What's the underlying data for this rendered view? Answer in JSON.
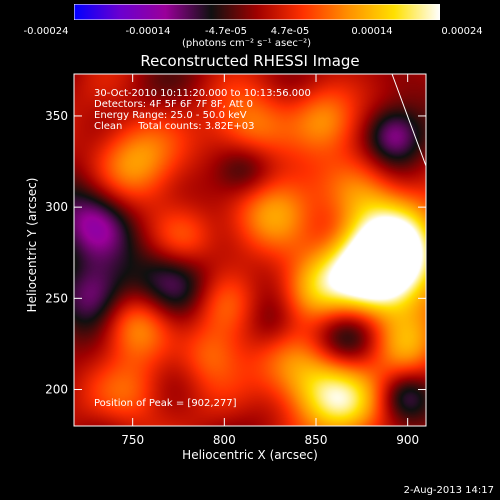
{
  "colorbar": {
    "ticks": [
      "-0.00024",
      "-0.00014",
      "-4.7e-05",
      "4.7e-05",
      "0.00014",
      "0.00024"
    ],
    "unit_label": "(photons cm⁻² s⁻¹ asec⁻²)",
    "colors": [
      "#0000ff",
      "#6a00d0",
      "#9a009a",
      "#101010",
      "#a00000",
      "#ff3000",
      "#ff9000",
      "#ffe000",
      "#ffffff"
    ]
  },
  "chart_data": {
    "type": "heatmap",
    "title": "Reconstructed RHESSI Image",
    "xlabel": "Heliocentric X (arcsec)",
    "ylabel": "Heliocentric Y (arcsec)",
    "xlim": [
      718,
      910
    ],
    "ylim": [
      180,
      373
    ],
    "x_ticks": [
      750,
      800,
      850,
      900
    ],
    "y_ticks": [
      200,
      250,
      300,
      350
    ],
    "value_range": [
      -0.00024,
      0.00024
    ],
    "peak": [
      902,
      277
    ],
    "peak_label": "Position of Peak = [902,277]",
    "annotations": [
      "30-Oct-2010 10:11:20.000 to 10:13:56.000",
      "Detectors: 4F 5F 6F 7F 8F, Att 0",
      "Energy Range: 25.0 - 50.0 keV",
      "Clean     Total counts: 3.82E+03"
    ]
  },
  "footer": {
    "date": "2-Aug-2013 14:17"
  }
}
